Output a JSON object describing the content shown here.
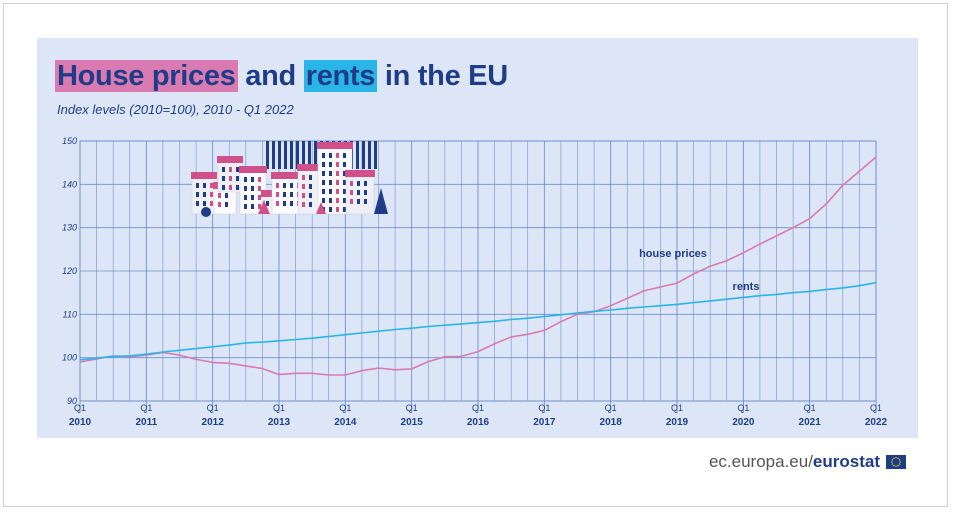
{
  "header": {
    "title_part1": "House prices",
    "title_part2": " and ",
    "title_part3": "rents",
    "title_part4": " in the EU",
    "subtitle": "Index levels (2010=100), 2010 - Q1 2022"
  },
  "footer": {
    "site": "ec.europa.eu/",
    "brand": "eurostat",
    "flag_icon": "eu-flag-icon"
  },
  "colors": {
    "house_prices": "#d97ab0",
    "rents": "#29b5e8",
    "axis_text": "#1f3c88",
    "grid": "#6f8ed0",
    "panel_bg": "#dde6f6"
  },
  "illustration": "houses-illustration",
  "chart_data": {
    "type": "line",
    "title": "House prices and rents in the EU",
    "subtitle": "Index levels (2010=100), 2010 - Q1 2022",
    "xlabel": "",
    "ylabel": "",
    "ylim": [
      90,
      150
    ],
    "yticks": [
      90,
      100,
      110,
      120,
      130,
      140,
      150
    ],
    "x_quarters": [
      "2010Q1",
      "2010Q2",
      "2010Q3",
      "2010Q4",
      "2011Q1",
      "2011Q2",
      "2011Q3",
      "2011Q4",
      "2012Q1",
      "2012Q2",
      "2012Q3",
      "2012Q4",
      "2013Q1",
      "2013Q2",
      "2013Q3",
      "2013Q4",
      "2014Q1",
      "2014Q2",
      "2014Q3",
      "2014Q4",
      "2015Q1",
      "2015Q2",
      "2015Q3",
      "2015Q4",
      "2016Q1",
      "2016Q2",
      "2016Q3",
      "2016Q4",
      "2017Q1",
      "2017Q2",
      "2017Q3",
      "2017Q4",
      "2018Q1",
      "2018Q2",
      "2018Q3",
      "2018Q4",
      "2019Q1",
      "2019Q2",
      "2019Q3",
      "2019Q4",
      "2020Q1",
      "2020Q2",
      "2020Q3",
      "2020Q4",
      "2021Q1",
      "2021Q2",
      "2021Q3",
      "2021Q4",
      "2022Q1"
    ],
    "x_tick_labels": [
      {
        "q": "Q1",
        "year": "2010"
      },
      {
        "q": "Q1",
        "year": "2011"
      },
      {
        "q": "Q1",
        "year": "2012"
      },
      {
        "q": "Q1",
        "year": "2013"
      },
      {
        "q": "Q1",
        "year": "2014"
      },
      {
        "q": "Q1",
        "year": "2015"
      },
      {
        "q": "Q1",
        "year": "2016"
      },
      {
        "q": "Q1",
        "year": "2017"
      },
      {
        "q": "Q1",
        "year": "2018"
      },
      {
        "q": "Q1",
        "year": "2019"
      },
      {
        "q": "Q1",
        "year": "2020"
      },
      {
        "q": "Q1",
        "year": "2021"
      },
      {
        "q": "Q1",
        "year": "2022"
      }
    ],
    "series": [
      {
        "name": "house prices",
        "color": "#d97ab0",
        "values": [
          99.0,
          99.7,
          100.4,
          100.2,
          100.6,
          101.2,
          100.6,
          99.6,
          98.9,
          98.7,
          98.1,
          97.5,
          96.1,
          96.4,
          96.4,
          96.0,
          96.0,
          97.0,
          97.6,
          97.2,
          97.4,
          99.1,
          100.2,
          100.3,
          101.4,
          103.2,
          104.8,
          105.4,
          106.3,
          108.3,
          110.0,
          110.6,
          112.0,
          113.7,
          115.4,
          116.3,
          117.2,
          119.3,
          121.1,
          122.4,
          124.2,
          126.2,
          128.1,
          130.0,
          132.1,
          135.5,
          139.8,
          143.0,
          146.3
        ]
      },
      {
        "name": "rents",
        "color": "#29b5e8",
        "values": [
          99.5,
          99.9,
          100.3,
          100.4,
          100.8,
          101.3,
          101.7,
          102.1,
          102.5,
          102.9,
          103.4,
          103.6,
          103.9,
          104.2,
          104.5,
          104.9,
          105.3,
          105.7,
          106.1,
          106.5,
          106.8,
          107.2,
          107.5,
          107.8,
          108.1,
          108.4,
          108.8,
          109.1,
          109.5,
          109.9,
          110.3,
          110.7,
          111.0,
          111.4,
          111.7,
          112.0,
          112.3,
          112.7,
          113.1,
          113.5,
          113.9,
          114.3,
          114.6,
          115.0,
          115.3,
          115.7,
          116.1,
          116.6,
          117.3
        ]
      }
    ],
    "annotations": [
      {
        "text": "house prices",
        "series": "house prices"
      },
      {
        "text": "rents",
        "series": "rents"
      }
    ],
    "grid": true,
    "legend": "inline labels"
  }
}
